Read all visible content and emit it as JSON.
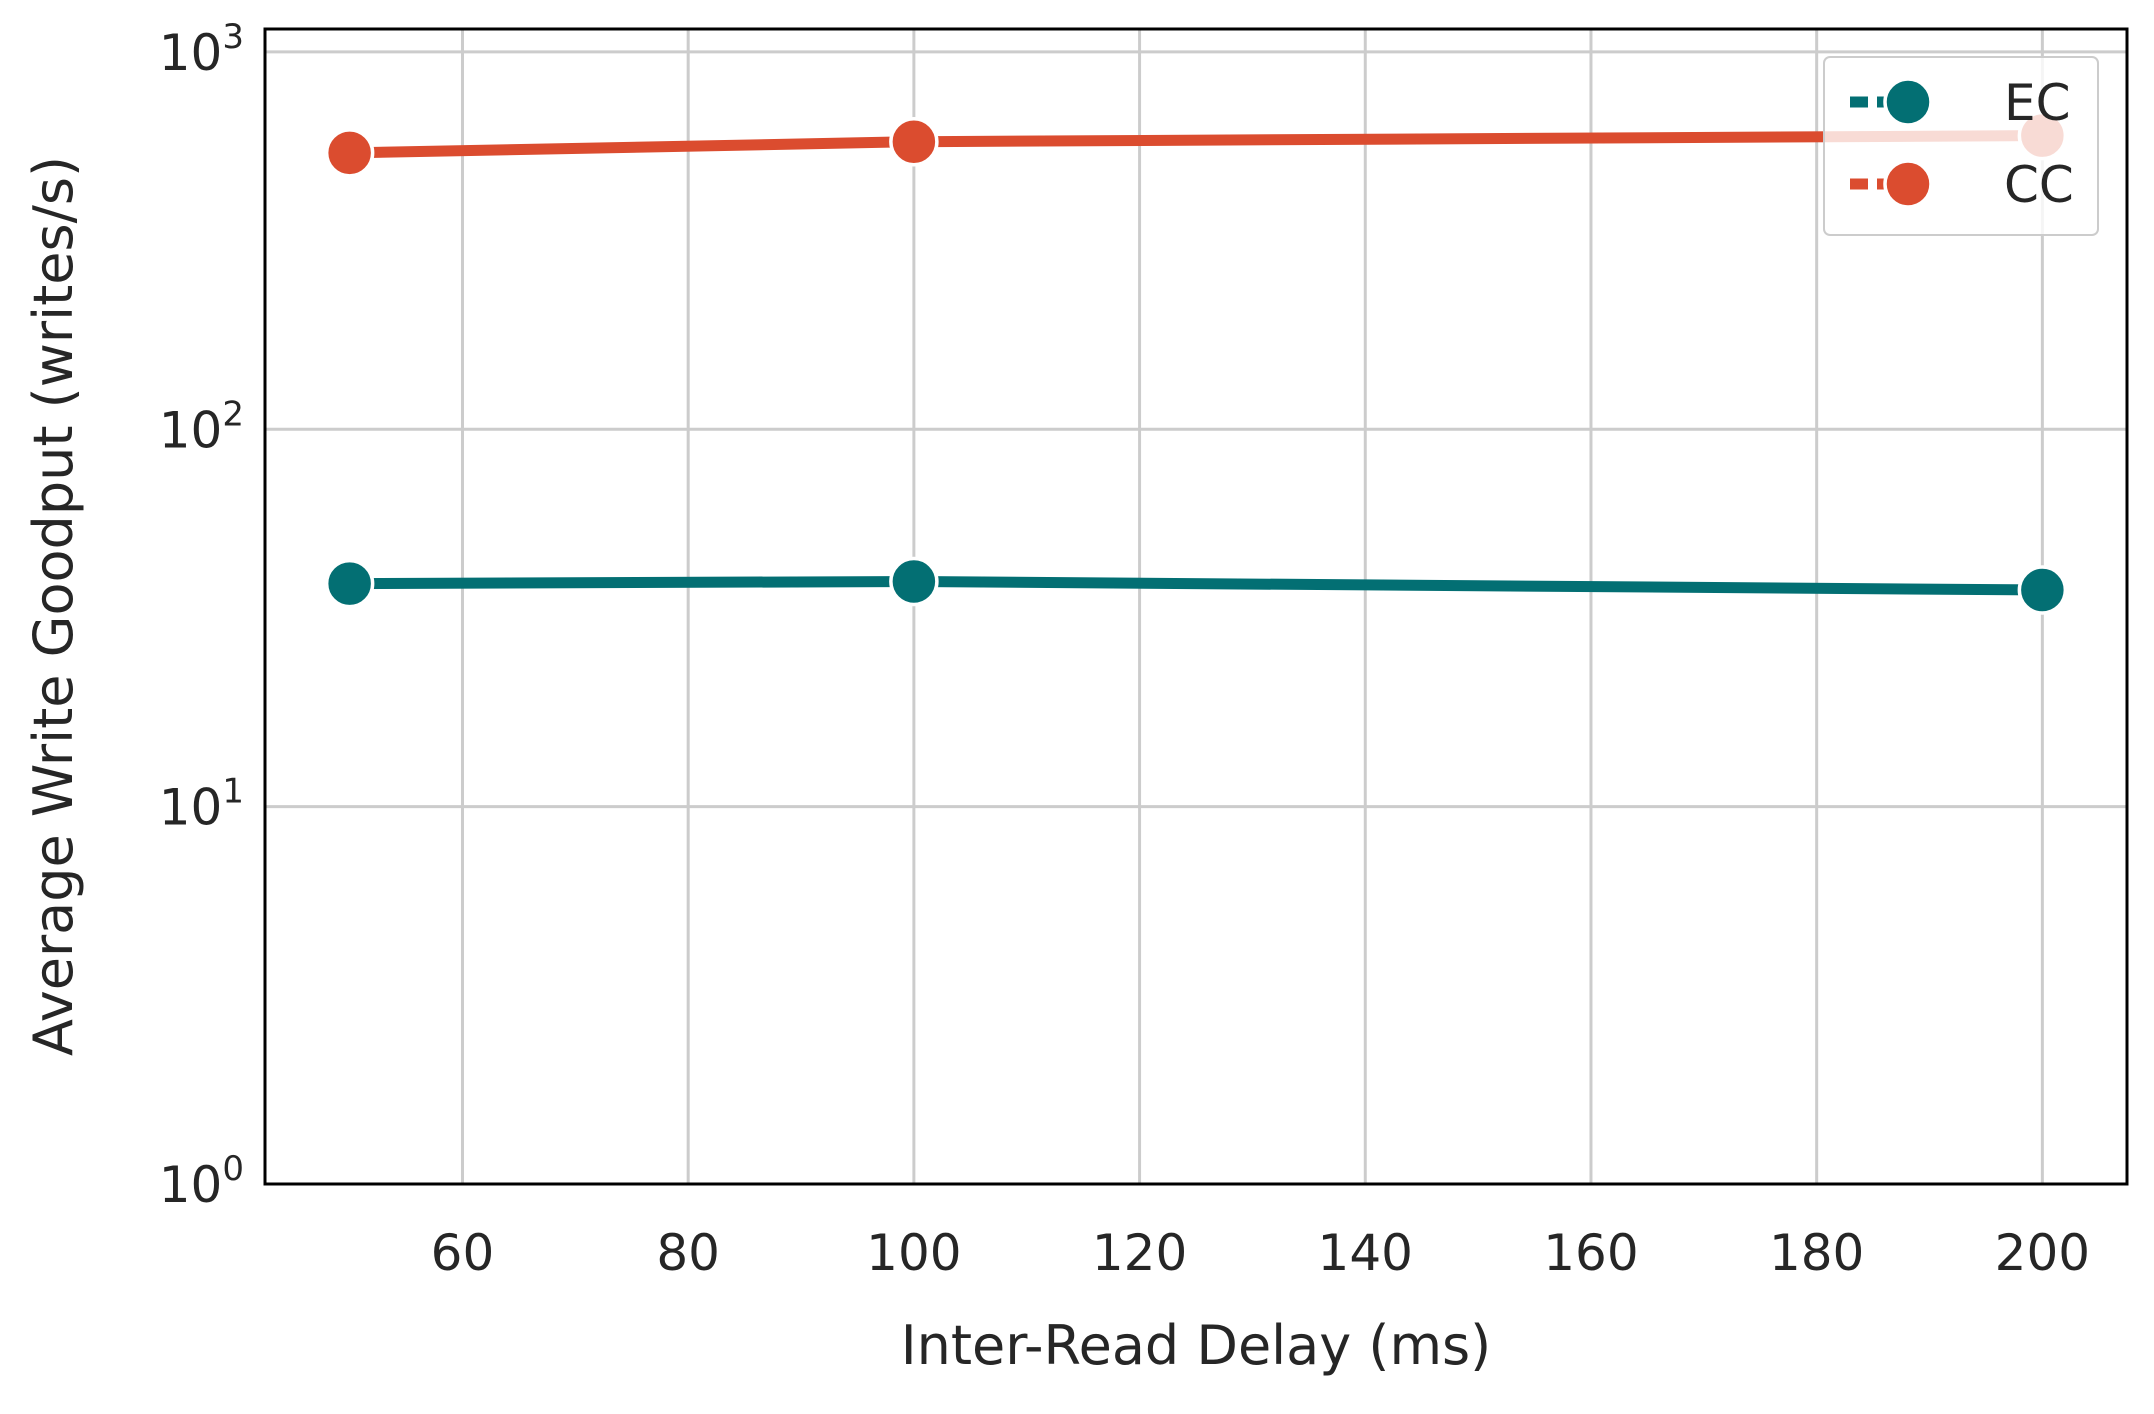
{
  "chart_data": {
    "type": "line",
    "xlabel": "Inter-Read Delay (ms)",
    "ylabel": "Average Write Goodput (writes/s)",
    "xlim": [
      42.5,
      207.5
    ],
    "ylim": [
      1,
      1150
    ],
    "yscale": "log",
    "grid": true,
    "x_ticks": [
      60,
      80,
      100,
      120,
      140,
      160,
      180,
      200
    ],
    "x_tick_labels": [
      "60",
      "80",
      "100",
      "120",
      "140",
      "160",
      "180",
      "200"
    ],
    "y_ticks": [
      {
        "value": 1,
        "base": "10",
        "exp": "0"
      },
      {
        "value": 10,
        "base": "10",
        "exp": "1"
      },
      {
        "value": 100,
        "base": "10",
        "exp": "2"
      },
      {
        "value": 1000,
        "base": "10",
        "exp": "3"
      }
    ],
    "legend_position": "top-right",
    "x": [
      50,
      100,
      200
    ],
    "series": [
      {
        "name": "EC",
        "color": "#036F73",
        "values": [
          39,
          39.5,
          37.5
        ]
      },
      {
        "name": "CC",
        "color": "#DB4C2F",
        "values": [
          540,
          578,
          600
        ]
      }
    ]
  }
}
